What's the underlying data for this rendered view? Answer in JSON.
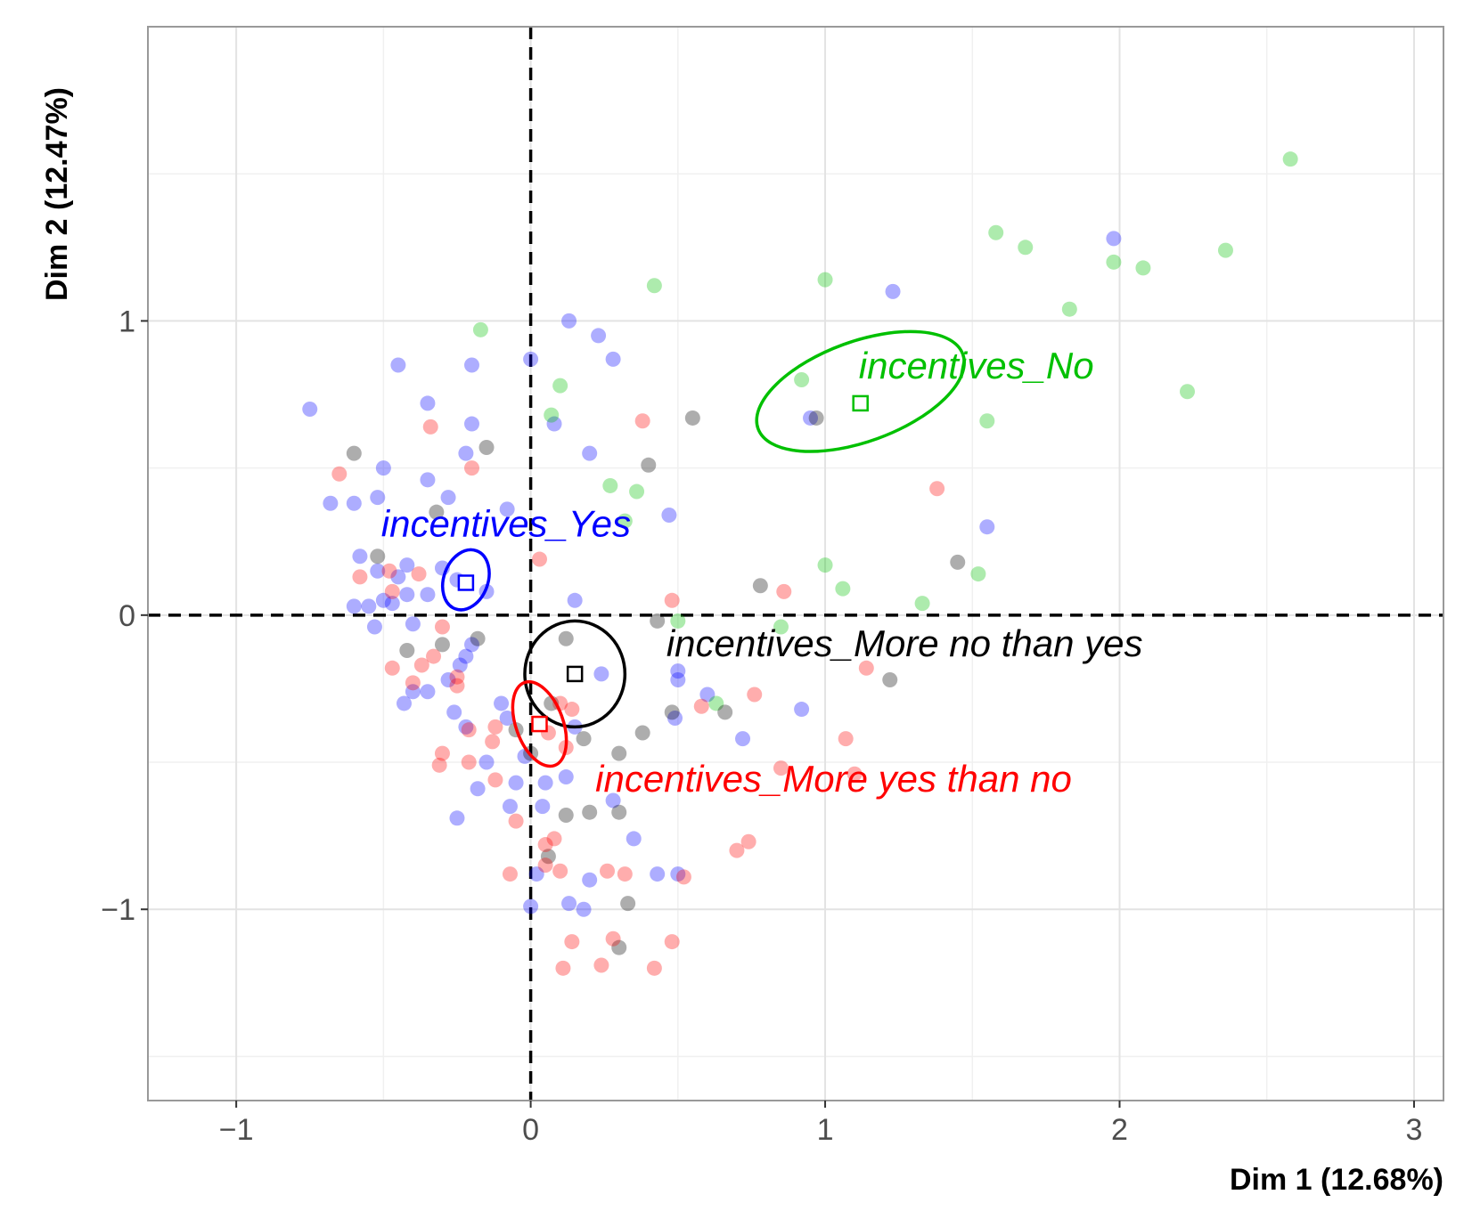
{
  "chart_data": {
    "type": "scatter",
    "xlabel": "Dim 1 (12.68%)",
    "ylabel": "Dim 2 (12.47%)",
    "xlim": [
      -1.3,
      3.1
    ],
    "ylim": [
      -1.65,
      2.0
    ],
    "x_ticks": [
      -1,
      0,
      1,
      2,
      3
    ],
    "y_ticks": [
      -1,
      0,
      1
    ],
    "x_tick_labels": [
      "−1",
      "0",
      "1",
      "2",
      "3"
    ],
    "y_tick_labels": [
      "−1",
      "0",
      "1"
    ],
    "grid": true,
    "reference_lines": {
      "x": 0,
      "y": 0
    },
    "colors": {
      "yes": "#0000ff",
      "no": "#00c000",
      "more_no_than_yes": "#000000",
      "more_yes_than_no": "#ff0000"
    },
    "groups": [
      {
        "key": "yes",
        "label": "incentives_Yes",
        "centroid": [
          -0.22,
          0.11
        ],
        "ellipse": {
          "cx": -0.22,
          "cy": 0.12,
          "rx": 0.075,
          "ry": 0.105,
          "angle": 20
        },
        "points": [
          [
            -0.75,
            0.7
          ],
          [
            -0.68,
            0.38
          ],
          [
            -0.6,
            0.38
          ],
          [
            -0.52,
            0.4
          ],
          [
            -0.5,
            0.5
          ],
          [
            -0.45,
            0.85
          ],
          [
            -0.35,
            0.72
          ],
          [
            -0.2,
            0.85
          ],
          [
            0,
            0.87
          ],
          [
            0.13,
            1.0
          ],
          [
            0.23,
            0.95
          ],
          [
            0.28,
            0.87
          ],
          [
            -0.2,
            0.65
          ],
          [
            -0.22,
            0.55
          ],
          [
            -0.35,
            0.46
          ],
          [
            -0.28,
            0.4
          ],
          [
            -0.08,
            0.36
          ],
          [
            0.08,
            0.65
          ],
          [
            0.2,
            0.55
          ],
          [
            0.47,
            0.34
          ],
          [
            -0.58,
            0.2
          ],
          [
            -0.52,
            0.15
          ],
          [
            -0.45,
            0.13
          ],
          [
            -0.42,
            0.17
          ],
          [
            -0.3,
            0.16
          ],
          [
            -0.25,
            0.12
          ],
          [
            -0.15,
            0.08
          ],
          [
            -0.35,
            0.07
          ],
          [
            -0.42,
            0.07
          ],
          [
            -0.47,
            0.04
          ],
          [
            -0.5,
            0.05
          ],
          [
            -0.55,
            0.03
          ],
          [
            -0.6,
            0.03
          ],
          [
            -0.53,
            -0.04
          ],
          [
            -0.4,
            -0.03
          ],
          [
            -0.2,
            -0.1
          ],
          [
            -0.22,
            -0.14
          ],
          [
            -0.24,
            -0.17
          ],
          [
            -0.28,
            -0.22
          ],
          [
            -0.43,
            -0.3
          ],
          [
            -0.35,
            -0.26
          ],
          [
            -0.4,
            -0.26
          ],
          [
            -0.26,
            -0.33
          ],
          [
            -0.22,
            -0.38
          ],
          [
            -0.1,
            -0.3
          ],
          [
            -0.08,
            -0.35
          ],
          [
            -0.02,
            -0.48
          ],
          [
            -0.05,
            -0.57
          ],
          [
            -0.18,
            -0.59
          ],
          [
            -0.25,
            -0.69
          ],
          [
            -0.15,
            -0.5
          ],
          [
            -0.07,
            -0.65
          ],
          [
            0.04,
            -0.65
          ],
          [
            0.05,
            -0.57
          ],
          [
            0.12,
            -0.55
          ],
          [
            0.15,
            0.05
          ],
          [
            0.28,
            -0.63
          ],
          [
            0.35,
            -0.76
          ],
          [
            0.43,
            -0.88
          ],
          [
            0.2,
            -0.9
          ],
          [
            0.0,
            -0.99
          ],
          [
            0.13,
            -0.98
          ],
          [
            0.18,
            -1.0
          ],
          [
            0.02,
            -0.88
          ],
          [
            0.5,
            -0.88
          ],
          [
            0.5,
            -0.22
          ],
          [
            0.5,
            -0.19
          ],
          [
            0.49,
            -0.35
          ],
          [
            0.72,
            -0.42
          ],
          [
            0.6,
            -0.27
          ],
          [
            0.24,
            -0.2
          ],
          [
            0.15,
            -0.38
          ],
          [
            0.95,
            0.67
          ],
          [
            0.92,
            -0.32
          ],
          [
            1.23,
            1.1
          ],
          [
            1.55,
            0.3
          ],
          [
            1.98,
            1.28
          ]
        ]
      },
      {
        "key": "no",
        "label": "incentives_No",
        "centroid": [
          1.12,
          0.72
        ],
        "ellipse": {
          "cx": 1.12,
          "cy": 0.76,
          "rx": 0.37,
          "ry": 0.17,
          "angle": -20
        },
        "points": [
          [
            2.58,
            1.55
          ],
          [
            1.58,
            1.3
          ],
          [
            1.68,
            1.25
          ],
          [
            1.98,
            1.2
          ],
          [
            2.08,
            1.18
          ],
          [
            2.36,
            1.24
          ],
          [
            1.83,
            1.04
          ],
          [
            1.0,
            1.14
          ],
          [
            0.42,
            1.12
          ],
          [
            -0.17,
            0.97
          ],
          [
            0.1,
            0.78
          ],
          [
            0.07,
            0.68
          ],
          [
            0.92,
            0.8
          ],
          [
            2.23,
            0.76
          ],
          [
            1.55,
            0.66
          ],
          [
            0.27,
            0.44
          ],
          [
            0.36,
            0.42
          ],
          [
            0.32,
            0.32
          ],
          [
            1.0,
            0.17
          ],
          [
            1.06,
            0.09
          ],
          [
            1.52,
            0.14
          ],
          [
            1.33,
            0.04
          ],
          [
            0.85,
            -0.04
          ],
          [
            0.5,
            -0.02
          ],
          [
            0.63,
            -0.3
          ]
        ]
      },
      {
        "key": "more_no_than_yes",
        "label": "incentives_More no than yes",
        "centroid": [
          0.15,
          -0.2
        ],
        "ellipse": {
          "cx": 0.15,
          "cy": -0.2,
          "rx": 0.17,
          "ry": 0.18,
          "angle": 0
        },
        "points": [
          [
            0.55,
            0.67
          ],
          [
            0.97,
            0.67
          ],
          [
            -0.6,
            0.55
          ],
          [
            -0.15,
            0.57
          ],
          [
            0.4,
            0.51
          ],
          [
            -0.32,
            0.35
          ],
          [
            -0.52,
            0.2
          ],
          [
            -0.3,
            -0.1
          ],
          [
            -0.18,
            -0.08
          ],
          [
            -0.42,
            -0.12
          ],
          [
            0.12,
            -0.08
          ],
          [
            0.07,
            -0.3
          ],
          [
            -0.05,
            -0.39
          ],
          [
            0.0,
            -0.47
          ],
          [
            0.18,
            -0.42
          ],
          [
            0.3,
            -0.47
          ],
          [
            0.38,
            -0.4
          ],
          [
            0.48,
            -0.33
          ],
          [
            0.66,
            -0.33
          ],
          [
            0.2,
            -0.67
          ],
          [
            0.3,
            -0.67
          ],
          [
            0.12,
            -0.68
          ],
          [
            0.06,
            -0.82
          ],
          [
            0.33,
            -0.98
          ],
          [
            0.3,
            -1.13
          ],
          [
            0.78,
            0.1
          ],
          [
            1.45,
            0.18
          ],
          [
            1.22,
            -0.22
          ],
          [
            0.43,
            -0.02
          ]
        ]
      },
      {
        "key": "more_yes_than_no",
        "label": "incentives_More yes than no",
        "centroid": [
          0.03,
          -0.37
        ],
        "ellipse": {
          "cx": 0.03,
          "cy": -0.37,
          "rx": 0.08,
          "ry": 0.15,
          "angle": -20
        },
        "points": [
          [
            -0.65,
            0.48
          ],
          [
            -0.34,
            0.64
          ],
          [
            -0.2,
            0.5
          ],
          [
            0.38,
            0.66
          ],
          [
            1.38,
            0.43
          ],
          [
            -0.58,
            0.13
          ],
          [
            -0.48,
            0.15
          ],
          [
            -0.47,
            0.08
          ],
          [
            -0.38,
            0.14
          ],
          [
            0.03,
            0.19
          ],
          [
            0.48,
            0.05
          ],
          [
            0.86,
            0.08
          ],
          [
            -0.47,
            -0.18
          ],
          [
            -0.37,
            -0.17
          ],
          [
            -0.33,
            -0.14
          ],
          [
            -0.3,
            -0.04
          ],
          [
            -0.4,
            -0.23
          ],
          [
            -0.25,
            -0.21
          ],
          [
            -0.25,
            -0.24
          ],
          [
            -0.13,
            -0.43
          ],
          [
            -0.21,
            -0.39
          ],
          [
            -0.12,
            -0.38
          ],
          [
            0.1,
            -0.3
          ],
          [
            0.14,
            -0.32
          ],
          [
            0.06,
            -0.4
          ],
          [
            0.12,
            -0.45
          ],
          [
            -0.3,
            -0.47
          ],
          [
            -0.31,
            -0.51
          ],
          [
            -0.21,
            -0.5
          ],
          [
            -0.12,
            -0.56
          ],
          [
            -0.05,
            -0.7
          ],
          [
            0.05,
            -0.78
          ],
          [
            0.08,
            -0.76
          ],
          [
            0.05,
            -0.85
          ],
          [
            0.1,
            -0.87
          ],
          [
            0.26,
            -0.87
          ],
          [
            0.32,
            -0.88
          ],
          [
            0.52,
            -0.89
          ],
          [
            0.58,
            -0.31
          ],
          [
            0.76,
            -0.27
          ],
          [
            0.74,
            -0.77
          ],
          [
            0.7,
            -0.8
          ],
          [
            0.85,
            -0.52
          ],
          [
            1.07,
            -0.42
          ],
          [
            1.1,
            -0.54
          ],
          [
            1.14,
            -0.18
          ],
          [
            -0.07,
            -0.88
          ],
          [
            0.14,
            -1.11
          ],
          [
            0.28,
            -1.1
          ],
          [
            0.42,
            -1.2
          ],
          [
            0.24,
            -1.19
          ],
          [
            0.11,
            -1.2
          ],
          [
            0.48,
            -1.11
          ]
        ]
      }
    ]
  }
}
